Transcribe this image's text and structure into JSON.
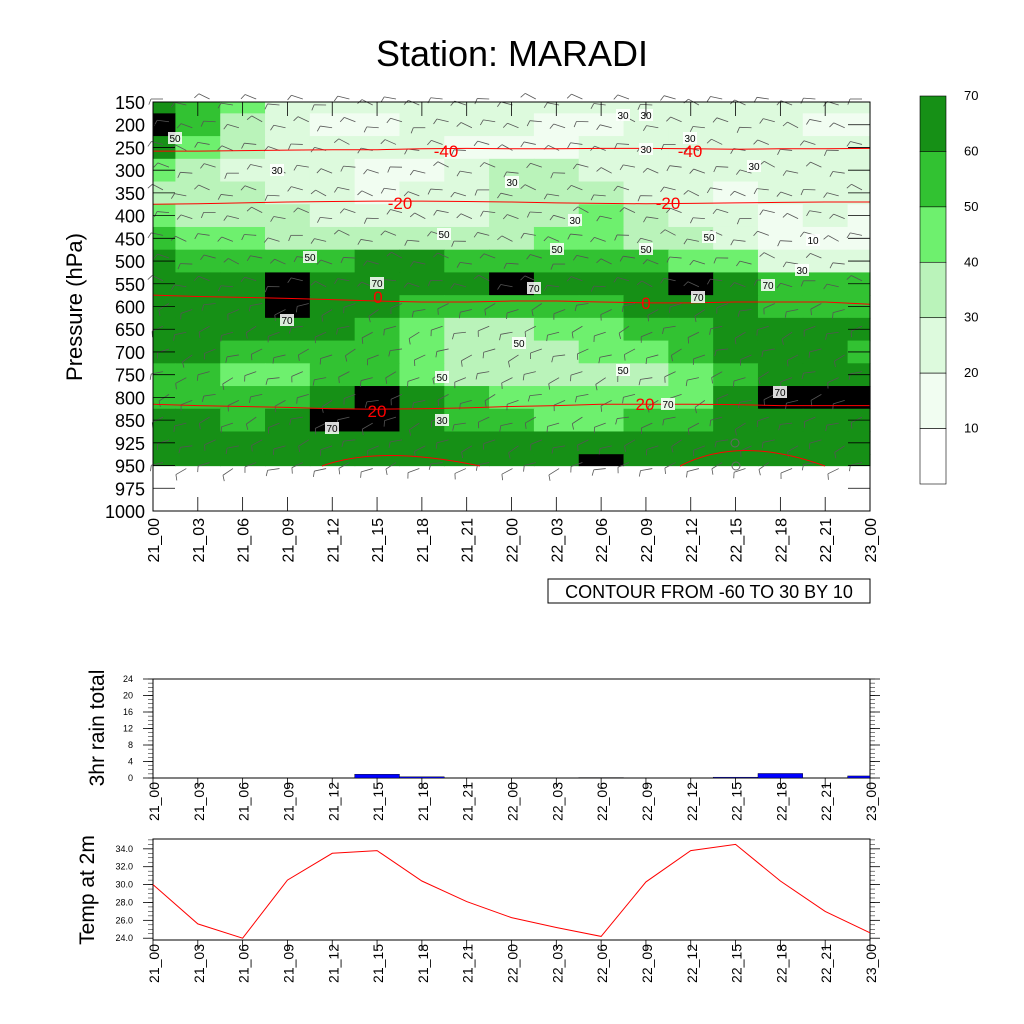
{
  "title": "Station: MARADI",
  "colors": {
    "bg": "#ffffff",
    "shade_levels": [
      "#ffffff",
      "#f1fdf1",
      "#ddfadd",
      "#baf3ba",
      "#6ef06e",
      "#32c232",
      "#169016"
    ],
    "isotherm": "#ff0000",
    "rain_bar": "#0000ff",
    "temp_line": "#ff0000"
  },
  "chart_data": [
    {
      "type": "heatmap",
      "name": "cross-section",
      "ylabel": "Pressure (hPa)",
      "y_ticks": [
        "150",
        "200",
        "250",
        "300",
        "350",
        "400",
        "450",
        "500",
        "550",
        "600",
        "650",
        "700",
        "750",
        "800",
        "850",
        "925",
        "950",
        "975",
        "1000"
      ],
      "x_ticks": [
        "21_00",
        "21_03",
        "21_06",
        "21_09",
        "21_12",
        "21_15",
        "21_18",
        "21_21",
        "22_00",
        "22_03",
        "22_06",
        "22_09",
        "22_12",
        "22_15",
        "22_18",
        "22_21",
        "23_00"
      ],
      "colorbar": {
        "levels": [
          10,
          20,
          30,
          40,
          50,
          60,
          70
        ],
        "labels": [
          "10",
          "20",
          "30",
          "40",
          "50",
          "60",
          "70"
        ]
      },
      "contour_note": "CONTOUR FROM -60 TO 30 BY 10",
      "humidity_grid": [
        [
          60,
          55,
          40,
          25,
          20,
          20,
          25,
          25,
          20,
          20,
          20,
          20,
          20,
          20,
          20,
          20,
          20
        ],
        [
          70,
          55,
          35,
          20,
          15,
          15,
          20,
          20,
          20,
          15,
          15,
          20,
          20,
          20,
          20,
          15,
          15
        ],
        [
          60,
          40,
          30,
          25,
          20,
          20,
          20,
          15,
          15,
          15,
          20,
          20,
          25,
          20,
          20,
          20,
          20
        ],
        [
          40,
          30,
          25,
          20,
          20,
          15,
          15,
          25,
          30,
          30,
          25,
          20,
          20,
          20,
          25,
          25,
          20
        ],
        [
          35,
          30,
          30,
          25,
          20,
          15,
          20,
          25,
          30,
          35,
          30,
          25,
          20,
          15,
          20,
          25,
          20
        ],
        [
          40,
          35,
          30,
          30,
          25,
          25,
          20,
          20,
          30,
          35,
          40,
          30,
          25,
          20,
          15,
          20,
          15
        ],
        [
          55,
          45,
          40,
          35,
          35,
          35,
          35,
          30,
          35,
          45,
          45,
          35,
          30,
          25,
          15,
          15,
          15
        ],
        [
          60,
          55,
          55,
          50,
          55,
          60,
          60,
          55,
          50,
          55,
          55,
          50,
          45,
          40,
          20,
          25,
          25
        ],
        [
          60,
          60,
          65,
          72,
          65,
          60,
          60,
          65,
          70,
          65,
          60,
          65,
          70,
          60,
          50,
          50,
          50
        ],
        [
          60,
          60,
          65,
          70,
          65,
          60,
          55,
          50,
          50,
          50,
          55,
          60,
          65,
          60,
          55,
          55,
          55
        ],
        [
          60,
          65,
          60,
          60,
          60,
          55,
          45,
          35,
          35,
          40,
          45,
          50,
          55,
          60,
          60,
          60,
          60
        ],
        [
          60,
          60,
          55,
          50,
          55,
          50,
          40,
          30,
          30,
          35,
          40,
          45,
          50,
          60,
          65,
          60,
          55
        ],
        [
          55,
          50,
          45,
          45,
          55,
          55,
          45,
          35,
          35,
          35,
          35,
          35,
          40,
          50,
          60,
          60,
          60
        ],
        [
          55,
          50,
          50,
          55,
          65,
          70,
          60,
          50,
          45,
          40,
          40,
          40,
          45,
          60,
          70,
          72,
          70
        ],
        [
          60,
          60,
          55,
          60,
          70,
          72,
          65,
          55,
          50,
          45,
          45,
          50,
          55,
          60,
          65,
          65,
          65
        ],
        [
          60,
          60,
          60,
          60,
          60,
          60,
          60,
          60,
          60,
          60,
          60,
          60,
          60,
          60,
          60,
          60,
          60
        ],
        [
          60,
          60,
          60,
          60,
          60,
          60,
          60,
          60,
          60,
          60,
          70,
          60,
          60,
          60,
          60,
          60,
          60
        ]
      ],
      "isotherms": [
        {
          "label": "-40",
          "p": [
            258,
            258,
            257,
            256,
            255,
            255,
            253,
            252,
            253,
            253,
            252,
            252,
            253,
            254,
            253,
            253,
            252
          ]
        },
        {
          "label": "-20",
          "p": [
            375,
            374,
            372,
            370,
            369,
            368,
            368,
            369,
            370,
            372,
            373,
            374,
            373,
            372,
            371,
            370,
            370
          ]
        },
        {
          "label": "0",
          "p": [
            575,
            578,
            580,
            582,
            585,
            588,
            590,
            590,
            588,
            588,
            590,
            592,
            592,
            590,
            590,
            590,
            595
          ]
        },
        {
          "label": "20",
          "p": [
            815,
            818,
            820,
            822,
            825,
            826,
            825,
            823,
            820,
            818,
            815,
            815,
            815,
            816,
            818,
            818,
            818
          ]
        }
      ],
      "rh_labels": [
        "50",
        "30",
        "30",
        "30",
        "30",
        "30",
        "30",
        "30",
        "30",
        "50",
        "50",
        "50",
        "50",
        "10",
        "30",
        "50",
        "70",
        "70",
        "70",
        "70",
        "70",
        "50",
        "50",
        "50",
        "70",
        "70",
        "70",
        "30"
      ],
      "isotherm_labels": [
        "-40",
        "-40",
        "-20",
        "-20",
        "0",
        "0",
        "20",
        "20"
      ]
    },
    {
      "type": "bar",
      "name": "rain",
      "ylabel": "3hr rain total",
      "ylim": [
        0,
        24
      ],
      "y_ticks": [
        "0",
        "4",
        "8",
        "12",
        "16",
        "20",
        "24"
      ],
      "categories": [
        "21_00",
        "21_03",
        "21_06",
        "21_09",
        "21_12",
        "21_15",
        "21_18",
        "21_21",
        "22_00",
        "22_03",
        "22_06",
        "22_09",
        "22_12",
        "22_15",
        "22_18",
        "22_21",
        "23_00"
      ],
      "values": [
        0,
        0,
        0,
        0,
        0,
        0.9,
        0.3,
        0,
        0,
        0,
        0.1,
        0,
        0,
        0.2,
        1.1,
        0,
        0.5
      ]
    },
    {
      "type": "line",
      "name": "temperature",
      "ylabel": "Temp at 2m",
      "ylim": [
        23.8,
        35.1
      ],
      "y_ticks": [
        "24.0",
        "26.0",
        "28.0",
        "30.0",
        "32.0",
        "34.0"
      ],
      "categories": [
        "21_00",
        "21_03",
        "21_06",
        "21_09",
        "21_12",
        "21_15",
        "21_18",
        "21_21",
        "22_00",
        "22_03",
        "22_06",
        "22_09",
        "22_12",
        "22_15",
        "22_18",
        "22_21",
        "23_00"
      ],
      "values": [
        30.0,
        25.6,
        24.0,
        30.5,
        33.5,
        33.8,
        30.4,
        28.1,
        26.3,
        25.2,
        24.2,
        30.3,
        33.8,
        34.5,
        30.4,
        27.0,
        24.6
      ]
    }
  ]
}
